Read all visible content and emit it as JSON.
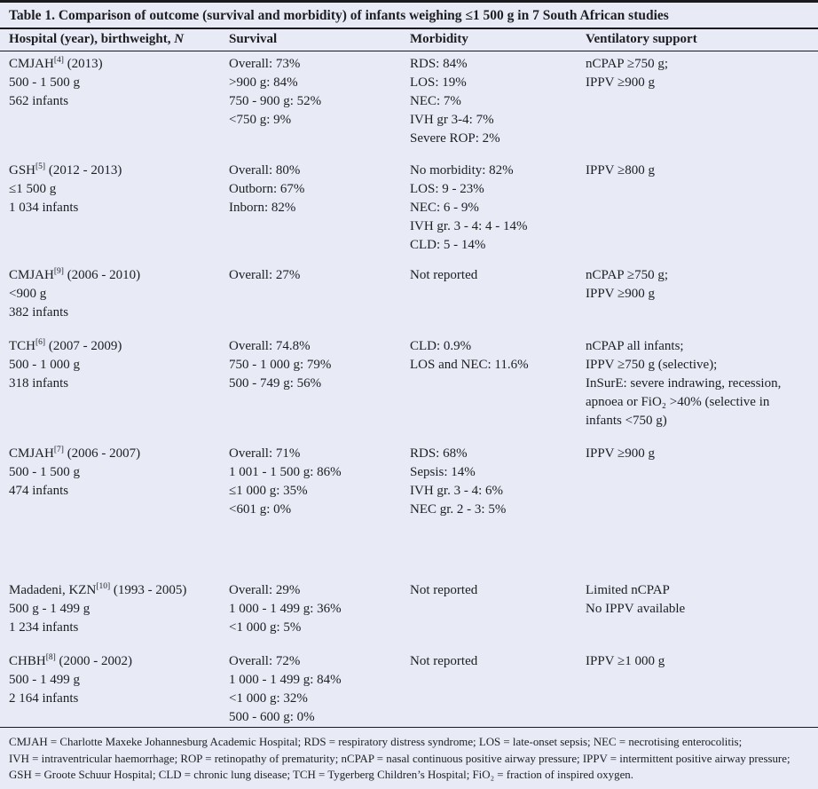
{
  "page": {
    "background_color": "#e8eaf5",
    "rule_color": "#1b1b1f",
    "text_color": "#1d1e22"
  },
  "table": {
    "title": "Table 1. Comparison of outcome (survival and morbidity) of infants weighing ≤1 500 g in 7 South African studies",
    "header": {
      "col1_prefix": "Hospital (year), birthweight, ",
      "col1_italic": "N",
      "col2": "Survival",
      "col3": "Morbidity",
      "col4": "Ventilatory support"
    },
    "rows": [
      {
        "name": "CMJAH",
        "ref": "[4]",
        "dates": " (2013)",
        "birthweight": "500 - 1 500 g",
        "n": "562 infants",
        "survival": [
          "Overall: 73%",
          ">900 g: 84%",
          "750 - 900 g: 52%",
          "<750 g: 9%"
        ],
        "morbidity": [
          "RDS: 84%",
          "LOS: 19%",
          "NEC: 7%",
          "IVH gr 3-4: 7%",
          "Severe ROP: 2%"
        ],
        "ventilatory": [
          "nCPAP ≥750 g;",
          "IPPV ≥900 g"
        ]
      },
      {
        "name": "GSH",
        "ref": "[5]",
        "dates": " (2012 - 2013)",
        "birthweight": "≤1 500 g",
        "n": "1 034 infants",
        "survival": [
          "Overall: 80%",
          "Outborn: 67%",
          "Inborn: 82%"
        ],
        "morbidity": [
          "No morbidity: 82%",
          "LOS: 9 - 23%",
          "NEC: 6 - 9%",
          "IVH gr. 3 - 4: 4 - 14%",
          "CLD: 5 - 14%"
        ],
        "ventilatory": [
          "IPPV ≥800 g"
        ]
      },
      {
        "name": "CMJAH",
        "ref": "[9]",
        "dates": " (2006 - 2010)",
        "birthweight": "<900 g",
        "n": "382 infants",
        "survival": [
          "Overall: 27%"
        ],
        "morbidity": [
          "Not reported"
        ],
        "ventilatory": [
          "nCPAP ≥750 g;",
          "IPPV ≥900 g"
        ]
      },
      {
        "name": "TCH",
        "ref": "[6]",
        "dates": " (2007 - 2009)",
        "birthweight": "500 - 1 000 g",
        "n": "318 infants",
        "survival": [
          "Overall: 74.8%",
          "750 - 1 000 g: 79%",
          "500 - 749 g: 56%"
        ],
        "morbidity": [
          "CLD: 0.9%",
          "LOS and NEC: 11.6%"
        ],
        "ventilatory": [
          "nCPAP all infants;",
          "IPPV ≥750 g (selective);",
          "InSurE: severe indrawing, recession, apnoea or FiO₂ >40% (selective in infants <750 g)"
        ]
      },
      {
        "name": "CMJAH",
        "ref": "[7]",
        "dates": " (2006 - 2007)",
        "birthweight": "500 - 1 500 g",
        "n": "474 infants",
        "survival": [
          "Overall: 71%",
          "1 001 - 1 500 g: 86%",
          "≤1 000 g: 35%",
          "<601 g: 0%"
        ],
        "morbidity": [
          "RDS: 68%",
          "Sepsis: 14%",
          "IVH gr. 3 - 4: 6%",
          "NEC gr. 2 - 3: 5%"
        ],
        "ventilatory": [
          "IPPV ≥900 g"
        ]
      },
      {
        "name": "Madadeni, KZN",
        "ref": "[10]",
        "dates": " (1993 - 2005)",
        "birthweight": "500 g - 1 499 g",
        "n": "1 234 infants",
        "survival": [
          "Overall: 29%",
          "1 000 - 1 499 g: 36%",
          "<1 000 g: 5%"
        ],
        "morbidity": [
          "Not reported"
        ],
        "ventilatory": [
          "Limited nCPAP",
          "No IPPV available"
        ]
      },
      {
        "name": "CHBH",
        "ref": "[8]",
        "dates": " (2000 - 2002)",
        "birthweight": "500 - 1 499 g",
        "n": "2 164 infants",
        "survival": [
          "Overall: 72%",
          "1 000 - 1 499 g: 84%",
          "<1 000 g: 32%",
          "500 - 600 g: 0%"
        ],
        "morbidity": [
          "Not reported"
        ],
        "ventilatory": [
          "IPPV ≥1 000 g"
        ]
      }
    ],
    "footnotes": [
      "CMJAH = Charlotte Maxeke Johannesburg Academic Hospital; RDS = respiratory distress syndrome; LOS = late-onset sepsis; NEC = necrotising enterocolitis;",
      "IVH = intraventricular haemorrhage; ROP = retinopathy of prematurity; nCPAP = nasal continuous positive airway pressure; IPPV = intermittent positive airway pressure;",
      "GSH = Groote Schuur Hospital; CLD = chronic lung disease; TCH = Tygerberg Children’s Hospital; FiO₂ = fraction of inspired oxygen."
    ]
  }
}
